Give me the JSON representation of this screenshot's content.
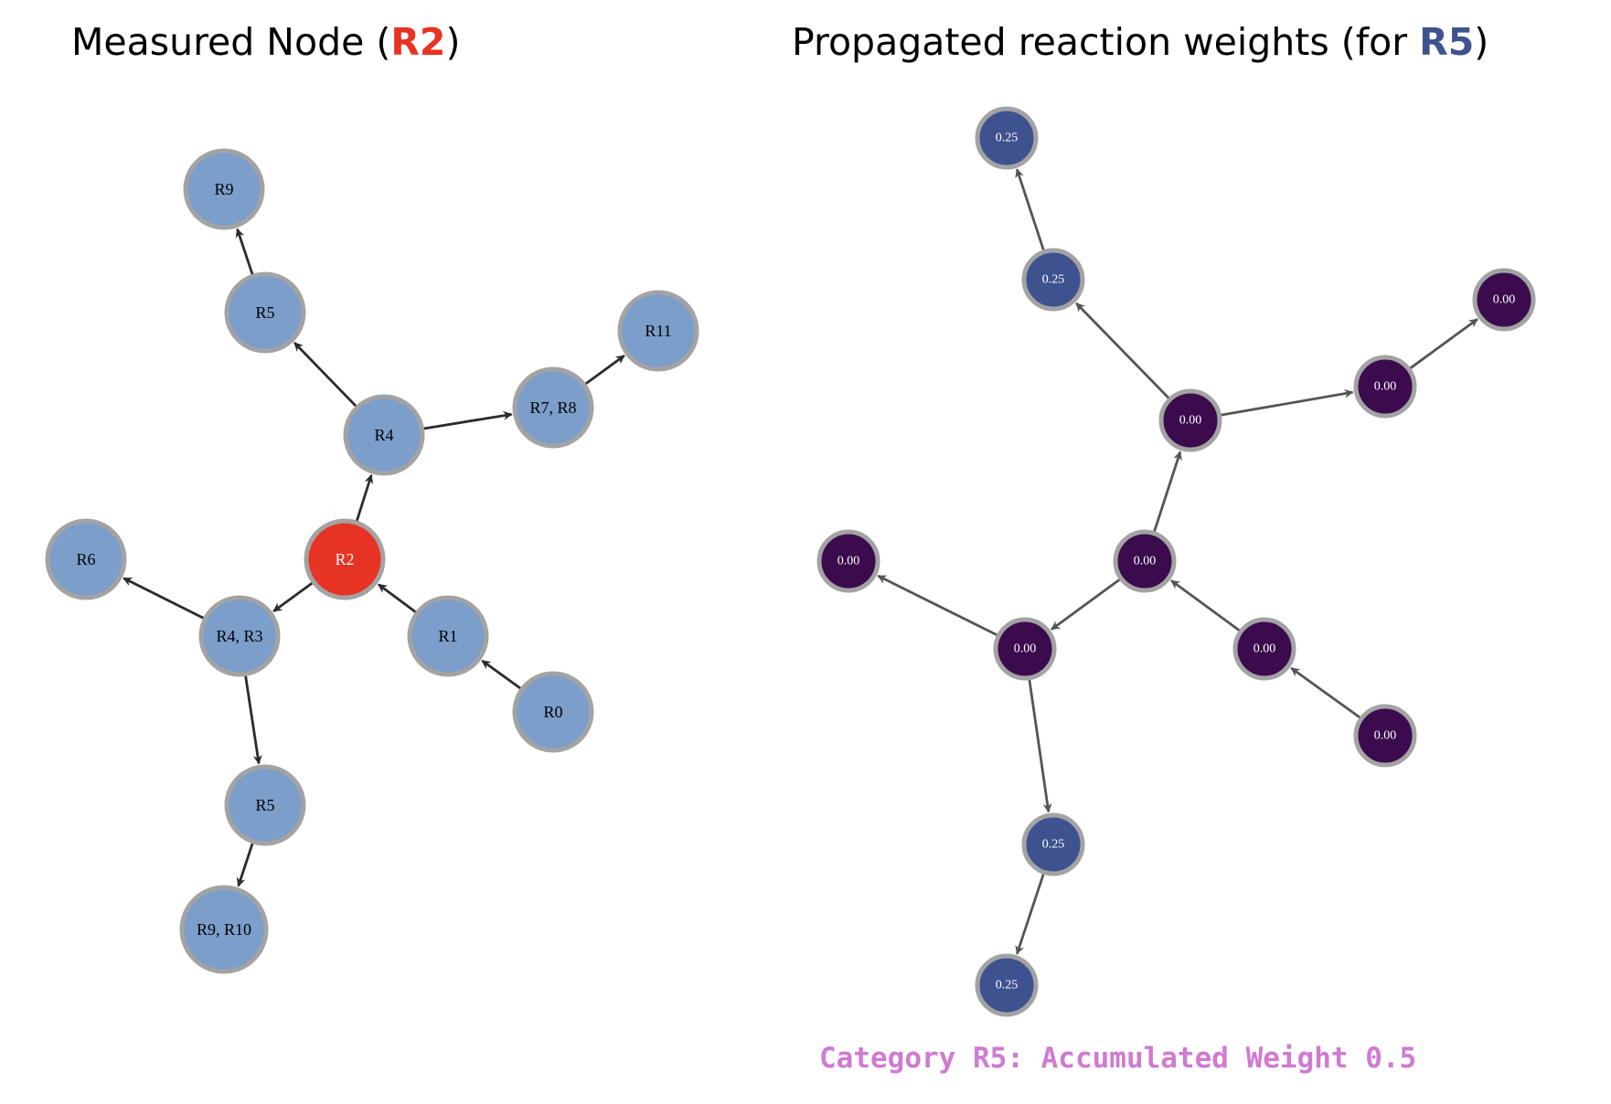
{
  "colors": {
    "highlight_red": "#e63323",
    "highlight_blue": "#3e5290",
    "node_blue": "#7b9ecb",
    "node_red": "#e63323",
    "weight_025": "#3e5290",
    "weight_000": "#3b0b4e",
    "node_border": "#a3a3a3",
    "edge_left": "#2b2b2b",
    "edge_right": "#555555",
    "caption": "#d07ad2"
  },
  "left_panel": {
    "title_prefix": "Measured Node (",
    "title_highlight": "R2",
    "title_suffix": ")",
    "nodes": [
      {
        "id": "R9_top",
        "label": "R9",
        "fill": "blue"
      },
      {
        "id": "R5_top",
        "label": "R5",
        "fill": "blue"
      },
      {
        "id": "R11",
        "label": "R11",
        "fill": "blue"
      },
      {
        "id": "R7R8",
        "label": "R7, R8",
        "fill": "blue"
      },
      {
        "id": "R4",
        "label": "R4",
        "fill": "blue"
      },
      {
        "id": "R2",
        "label": "R2",
        "fill": "red"
      },
      {
        "id": "R6",
        "label": "R6",
        "fill": "blue"
      },
      {
        "id": "R4R3",
        "label": "R4, R3",
        "fill": "blue"
      },
      {
        "id": "R1",
        "label": "R1",
        "fill": "blue"
      },
      {
        "id": "R0",
        "label": "R0",
        "fill": "blue"
      },
      {
        "id": "R5_bot",
        "label": "R5",
        "fill": "blue"
      },
      {
        "id": "R9R10",
        "label": "R9, R10",
        "fill": "blue"
      }
    ],
    "edges": [
      {
        "from": "R0",
        "to": "R1"
      },
      {
        "from": "R1",
        "to": "R2"
      },
      {
        "from": "R2",
        "to": "R4"
      },
      {
        "from": "R2",
        "to": "R4R3"
      },
      {
        "from": "R4",
        "to": "R5_top"
      },
      {
        "from": "R5_top",
        "to": "R9_top"
      },
      {
        "from": "R4",
        "to": "R7R8"
      },
      {
        "from": "R7R8",
        "to": "R11"
      },
      {
        "from": "R4R3",
        "to": "R6"
      },
      {
        "from": "R4R3",
        "to": "R5_bot"
      },
      {
        "from": "R5_bot",
        "to": "R9R10"
      }
    ]
  },
  "right_panel": {
    "title_prefix": "Propagated reaction weights (for ",
    "title_highlight": "R5",
    "title_suffix": ")",
    "nodes": [
      {
        "id": "w_R9_top",
        "label": "0.25",
        "weight": 0.25
      },
      {
        "id": "w_R5_top",
        "label": "0.25",
        "weight": 0.25
      },
      {
        "id": "w_R11",
        "label": "0.00",
        "weight": 0.0
      },
      {
        "id": "w_R7R8",
        "label": "0.00",
        "weight": 0.0
      },
      {
        "id": "w_R4",
        "label": "0.00",
        "weight": 0.0
      },
      {
        "id": "w_R2",
        "label": "0.00",
        "weight": 0.0
      },
      {
        "id": "w_R6",
        "label": "0.00",
        "weight": 0.0
      },
      {
        "id": "w_R4R3",
        "label": "0.00",
        "weight": 0.0
      },
      {
        "id": "w_R1",
        "label": "0.00",
        "weight": 0.0
      },
      {
        "id": "w_R0",
        "label": "0.00",
        "weight": 0.0
      },
      {
        "id": "w_R5_bot",
        "label": "0.25",
        "weight": 0.25
      },
      {
        "id": "w_R9R10",
        "label": "0.25",
        "weight": 0.25
      }
    ],
    "edges": [
      {
        "from": "w_R0",
        "to": "w_R1"
      },
      {
        "from": "w_R1",
        "to": "w_R2"
      },
      {
        "from": "w_R2",
        "to": "w_R4"
      },
      {
        "from": "w_R2",
        "to": "w_R4R3"
      },
      {
        "from": "w_R4",
        "to": "w_R5_top"
      },
      {
        "from": "w_R5_top",
        "to": "w_R9_top"
      },
      {
        "from": "w_R4",
        "to": "w_R7R8"
      },
      {
        "from": "w_R7R8",
        "to": "w_R11"
      },
      {
        "from": "w_R4R3",
        "to": "w_R6"
      },
      {
        "from": "w_R4R3",
        "to": "w_R5_bot"
      },
      {
        "from": "w_R5_bot",
        "to": "w_R9R10"
      }
    ]
  },
  "caption": "Category R5: Accumulated Weight 0.5"
}
